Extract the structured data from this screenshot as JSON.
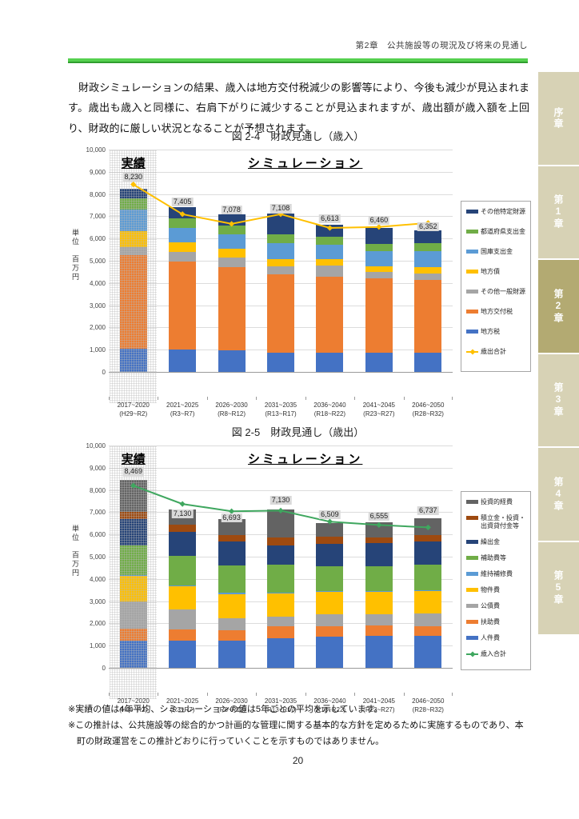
{
  "page": {
    "header": "第2章　公共施設等の現況及び将来の見通し",
    "intro": "財政シミュレーションの結果、歳入は地方交付税減少の影響等により、今後も減少が見込まれます。歳出も歳入と同様に、右肩下がりに減少することが見込まれますが、歳出額が歳入額を上回り、財政的に厳しい状況となることが予想されます。",
    "notes": [
      "※実績の値は4年平均、シミュレーションの値は5年ごとの平均を示しています。",
      "※この推計は、公共施設等の総合的かつ計画的な管理に関する基本的な方針を定めるために実施するものであり、本町の財政運営をこの推計どおりに行っていくことを示すものではありません。"
    ],
    "page_number": "20"
  },
  "sidebar": {
    "tabs": [
      {
        "label": "序章",
        "active": false
      },
      {
        "label": "第1章",
        "active": false
      },
      {
        "label": "第2章",
        "active": true
      },
      {
        "label": "第3章",
        "active": false
      },
      {
        "label": "第4章",
        "active": false
      },
      {
        "label": "第5章",
        "active": false
      }
    ],
    "inactive_color": "#d7d2b5",
    "active_color": "#b3aa72"
  },
  "chart_data": [
    {
      "type": "bar",
      "subtype": "stacked-bar-with-line",
      "title": "図 2-4　財政見通し（歳入）",
      "unit_label": "単位　百万円",
      "actual_label": "実績",
      "simulation_label": "シミュレーション",
      "ylim": [
        0,
        10000
      ],
      "ytick_step": 1000,
      "grid": true,
      "legend_position": "right",
      "categories": [
        {
          "range": "2017~2020",
          "era": "(H29~R2)"
        },
        {
          "range": "2021~2025",
          "era": "(R3~R7)"
        },
        {
          "range": "2026~2030",
          "era": "(R8~R12)"
        },
        {
          "range": "2031~2035",
          "era": "(R13~R17)"
        },
        {
          "range": "2036~2040",
          "era": "(R18~R22)"
        },
        {
          "range": "2041~2045",
          "era": "(R23~R27)"
        },
        {
          "range": "2046~2050",
          "era": "(R28~R32)"
        }
      ],
      "series": [
        {
          "name": "地方税",
          "color": "#4472c4",
          "values": [
            1050,
            1020,
            980,
            850,
            860,
            850,
            880
          ]
        },
        {
          "name": "地方交付税",
          "color": "#ed7d31",
          "values": [
            4200,
            3930,
            3740,
            3550,
            3433,
            3350,
            3250
          ]
        },
        {
          "name": "その他一般財源",
          "color": "#a5a5a5",
          "values": [
            350,
            430,
            410,
            360,
            480,
            300,
            280
          ]
        },
        {
          "name": "地方債",
          "color": "#ffc000",
          "values": [
            750,
            440,
            400,
            300,
            300,
            250,
            320
          ]
        },
        {
          "name": "国庫支出金",
          "color": "#5b9bd5",
          "values": [
            950,
            660,
            650,
            720,
            660,
            680,
            700
          ]
        },
        {
          "name": "都道府県支出金",
          "color": "#70ad47",
          "values": [
            500,
            420,
            420,
            420,
            360,
            330,
            350
          ]
        },
        {
          "name": "その他特定財源",
          "color": "#264478",
          "values": [
            430,
            505,
            478,
            908,
            520,
            700,
            572
          ]
        }
      ],
      "totals": [
        8230,
        7405,
        7078,
        7108,
        6613,
        6460,
        6352
      ],
      "total_label_offsets": [
        370,
        60,
        30,
        60,
        120,
        200,
        20
      ],
      "line": {
        "name": "歳出合計",
        "color": "#ffc000",
        "values": [
          8469,
          7130,
          6693,
          7130,
          6509,
          6555,
          6737
        ]
      }
    },
    {
      "type": "bar",
      "subtype": "stacked-bar-with-line",
      "title": "図 2-5　財政見通し（歳出）",
      "unit_label": "単位　百万円",
      "actual_label": "実績",
      "simulation_label": "シミュレーション",
      "ylim": [
        0,
        10000
      ],
      "ytick_step": 1000,
      "grid": true,
      "legend_position": "right",
      "categories": [
        {
          "range": "2017~2020",
          "era": "(H29~R2)"
        },
        {
          "range": "2021~2025",
          "era": "(R3~R7)"
        },
        {
          "range": "2026~2030",
          "era": "(R8~R12)"
        },
        {
          "range": "2031~2035",
          "era": "(R13~R17)"
        },
        {
          "range": "2036~2040",
          "era": "(R18~R22)"
        },
        {
          "range": "2041~2045",
          "era": "(R23~R27)"
        },
        {
          "range": "2046~2050",
          "era": "(R28~R32)"
        }
      ],
      "series": [
        {
          "name": "人件費",
          "color": "#4472c4",
          "values": [
            1220,
            1230,
            1220,
            1340,
            1404,
            1455,
            1437
          ]
        },
        {
          "name": "扶助費",
          "color": "#ed7d31",
          "values": [
            540,
            480,
            480,
            535,
            475,
            450,
            450
          ]
        },
        {
          "name": "公債費",
          "color": "#a5a5a5",
          "values": [
            1220,
            900,
            530,
            415,
            530,
            500,
            550
          ]
        },
        {
          "name": "物件費",
          "color": "#ffc000",
          "values": [
            1150,
            1070,
            1080,
            1070,
            1010,
            1000,
            1000
          ]
        },
        {
          "name": "維持補修費",
          "color": "#5b9bd5",
          "values": [
            30,
            30,
            70,
            40,
            30,
            50,
            50
          ]
        },
        {
          "name": "補助費等",
          "color": "#70ad47",
          "values": [
            1350,
            1310,
            1230,
            1260,
            1130,
            1100,
            1150
          ]
        },
        {
          "name": "繰出金",
          "color": "#264478",
          "values": [
            1170,
            1090,
            1090,
            830,
            1010,
            1050,
            1050
          ]
        },
        {
          "name": "積立金・投資・出資貸付金等",
          "color": "#9e4a10",
          "values": [
            320,
            320,
            260,
            360,
            300,
            250,
            300
          ]
        },
        {
          "name": "投資的経費",
          "color": "#636363",
          "values": [
            1469,
            700,
            733,
            1280,
            620,
            700,
            750
          ]
        }
      ],
      "totals": [
        8469,
        7130,
        6693,
        7130,
        6509,
        6555,
        6737
      ],
      "total_label_offsets": [
        180,
        -370,
        -110,
        240,
        220,
        100,
        160
      ],
      "line": {
        "name": "歳入合計",
        "color": "#3fa75f",
        "values": [
          8230,
          7405,
          7078,
          7108,
          6613,
          6460,
          6352
        ]
      }
    }
  ]
}
